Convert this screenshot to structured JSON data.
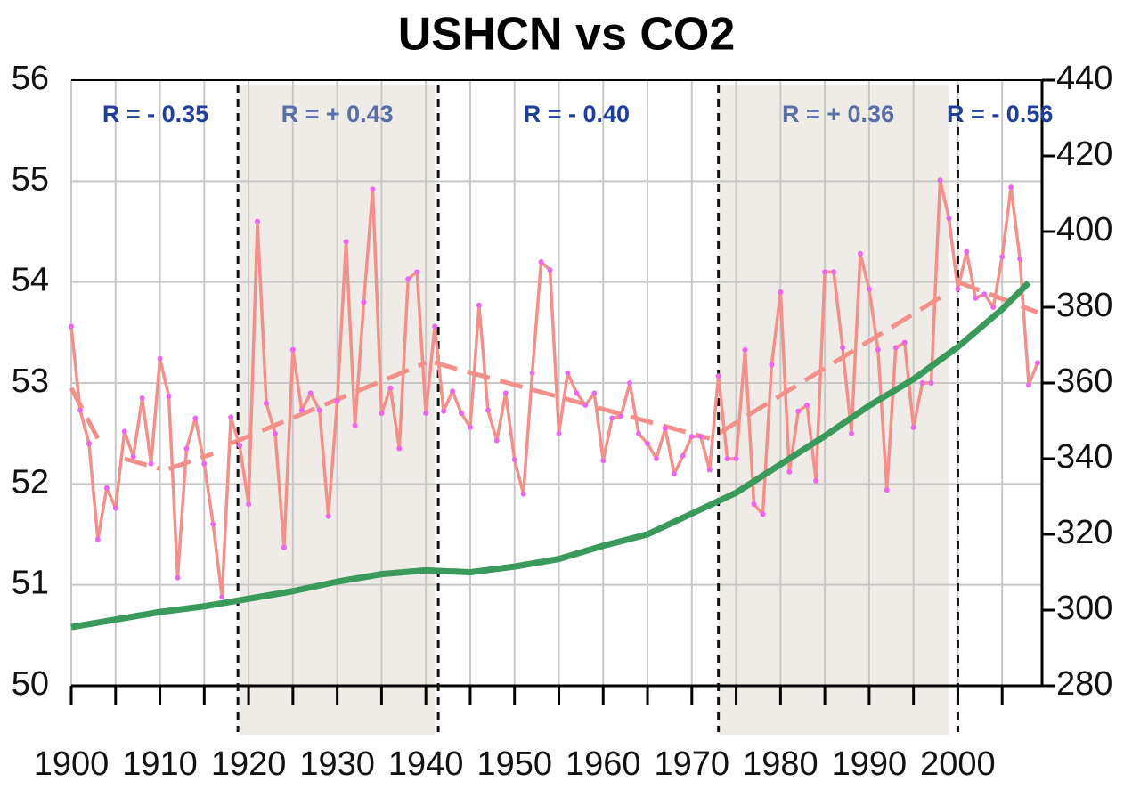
{
  "chart_data": {
    "type": "line",
    "title": "USHCN vs CO2",
    "xlim": [
      1900,
      2009.5
    ],
    "xticks": [
      1900,
      1910,
      1920,
      1930,
      1940,
      1950,
      1960,
      1970,
      1980,
      1990,
      2000
    ],
    "xminorticks": [
      1905,
      1915,
      1925,
      1935,
      1945,
      1955,
      1965,
      1975,
      1985,
      1995,
      2005
    ],
    "ylim": [
      50,
      56
    ],
    "yticks": [
      50,
      51,
      52,
      53,
      54,
      55,
      56
    ],
    "y2lim": [
      280,
      440
    ],
    "y2ticks": [
      280,
      300,
      320,
      340,
      360,
      380,
      400,
      420,
      440
    ],
    "grid": true,
    "series": [
      {
        "color": "#f4908a",
        "marker_color": "#ee66ee",
        "x": [
          1900,
          1901,
          1902,
          1903,
          1904,
          1905,
          1906,
          1907,
          1908,
          1909,
          1910,
          1911,
          1912,
          1913,
          1914,
          1915,
          1916,
          1917,
          1918,
          1919,
          1920,
          1921,
          1922,
          1923,
          1924,
          1925,
          1926,
          1927,
          1928,
          1929,
          1930,
          1931,
          1932,
          1933,
          1934,
          1935,
          1936,
          1937,
          1938,
          1939,
          1940,
          1941,
          1942,
          1943,
          1944,
          1945,
          1946,
          1947,
          1948,
          1949,
          1950,
          1951,
          1952,
          1953,
          1954,
          1955,
          1956,
          1957,
          1958,
          1959,
          1960,
          1961,
          1962,
          1963,
          1964,
          1965,
          1966,
          1967,
          1968,
          1969,
          1970,
          1971,
          1972,
          1973,
          1974,
          1975,
          1976,
          1977,
          1978,
          1979,
          1980,
          1981,
          1982,
          1983,
          1984,
          1985,
          1986,
          1987,
          1988,
          1989,
          1990,
          1991,
          1992,
          1993,
          1994,
          1995,
          1996,
          1997,
          1998,
          1999,
          2000,
          2001,
          2002,
          2003,
          2004,
          2005,
          2006,
          2007,
          2008,
          2009
        ],
        "values": [
          53.56,
          52.73,
          52.4,
          51.45,
          51.96,
          51.76,
          52.52,
          52.27,
          52.85,
          52.2,
          53.24,
          52.87,
          51.07,
          52.35,
          52.65,
          52.2,
          51.6,
          50.88,
          52.66,
          52.38,
          51.8,
          54.6,
          52.8,
          52.5,
          51.37,
          53.33,
          52.73,
          52.9,
          52.73,
          51.68,
          52.82,
          54.4,
          52.58,
          53.8,
          54.92,
          52.7,
          52.95,
          52.35,
          54.03,
          54.1,
          52.7,
          53.56,
          52.72,
          52.92,
          52.7,
          52.56,
          53.77,
          52.73,
          52.43,
          52.9,
          52.24,
          51.9,
          53.1,
          54.2,
          54.12,
          52.5,
          53.1,
          52.9,
          52.78,
          52.9,
          52.23,
          52.65,
          52.67,
          53.0,
          52.5,
          52.4,
          52.25,
          52.55,
          52.1,
          52.28,
          52.47,
          52.47,
          52.14,
          53.07,
          52.25,
          52.25,
          53.33,
          51.8,
          51.7,
          53.18,
          53.9,
          52.12,
          52.72,
          52.78,
          52.03,
          54.1,
          54.1,
          53.35,
          52.5,
          54.28,
          53.93,
          53.33,
          51.94,
          53.35,
          53.4,
          52.56,
          53.0,
          53.0,
          55.01,
          54.63,
          53.93,
          54.3,
          53.84,
          53.88,
          53.75,
          54.25,
          54.94,
          54.23,
          52.98,
          53.2
        ]
      },
      {
        "color": "#3a9a5b",
        "axis": "y2",
        "x": [
          1900,
          1905,
          1910,
          1915,
          1920,
          1925,
          1930,
          1935,
          1940,
          1945,
          1950,
          1955,
          1960,
          1965,
          1970,
          1975,
          1980,
          1985,
          1990,
          1995,
          2000,
          2005,
          2008
        ],
        "values": [
          295.5,
          297.5,
          299.5,
          301,
          303,
          305,
          307.5,
          309.5,
          310.5,
          310,
          311.5,
          313.5,
          317,
          320,
          325.5,
          331,
          338.5,
          346,
          354,
          361,
          369.5,
          379.5,
          386.5
        ]
      }
    ],
    "trend_color": "#f4908a",
    "trend_segments": [
      {
        "x": [
          1900,
          1903
        ],
        "values": [
          52.95,
          52.45
        ]
      },
      {
        "x": [
          1906,
          1910
        ],
        "values": [
          52.25,
          52.15
        ]
      },
      {
        "x": [
          1911,
          1916
        ],
        "values": [
          52.15,
          52.3
        ]
      },
      {
        "x": [
          1918,
          1940
        ],
        "values": [
          52.4,
          53.2
        ]
      },
      {
        "x": [
          1941,
          1972
        ],
        "values": [
          53.2,
          52.45
        ]
      },
      {
        "x": [
          1973,
          1999
        ],
        "values": [
          52.5,
          53.9
        ]
      },
      {
        "x": [
          2000,
          2009
        ],
        "values": [
          54.0,
          53.7
        ]
      }
    ],
    "dividers": [
      1918.8,
      1941.4,
      1973,
      2000
    ],
    "shaded": [
      [
        1919,
        1941
      ],
      [
        1973,
        1999
      ]
    ],
    "shade_color": "#efebe7",
    "periods": [
      {
        "x": [
          1900,
          1919
        ],
        "label": "R = - 0.35",
        "color": "#1f3f99"
      },
      {
        "x": [
          1919,
          1941
        ],
        "label": "R = + 0.43",
        "color": "#5a6fa8"
      },
      {
        "x": [
          1941,
          1973
        ],
        "label": "R = - 0.40",
        "color": "#1f3f99"
      },
      {
        "x": [
          1973,
          2000
        ],
        "label": "R = + 0.36",
        "color": "#5a6fa8"
      },
      {
        "x": [
          2000,
          2009.5
        ],
        "label": "R = - 0.56",
        "color": "#1f3f99"
      }
    ]
  }
}
